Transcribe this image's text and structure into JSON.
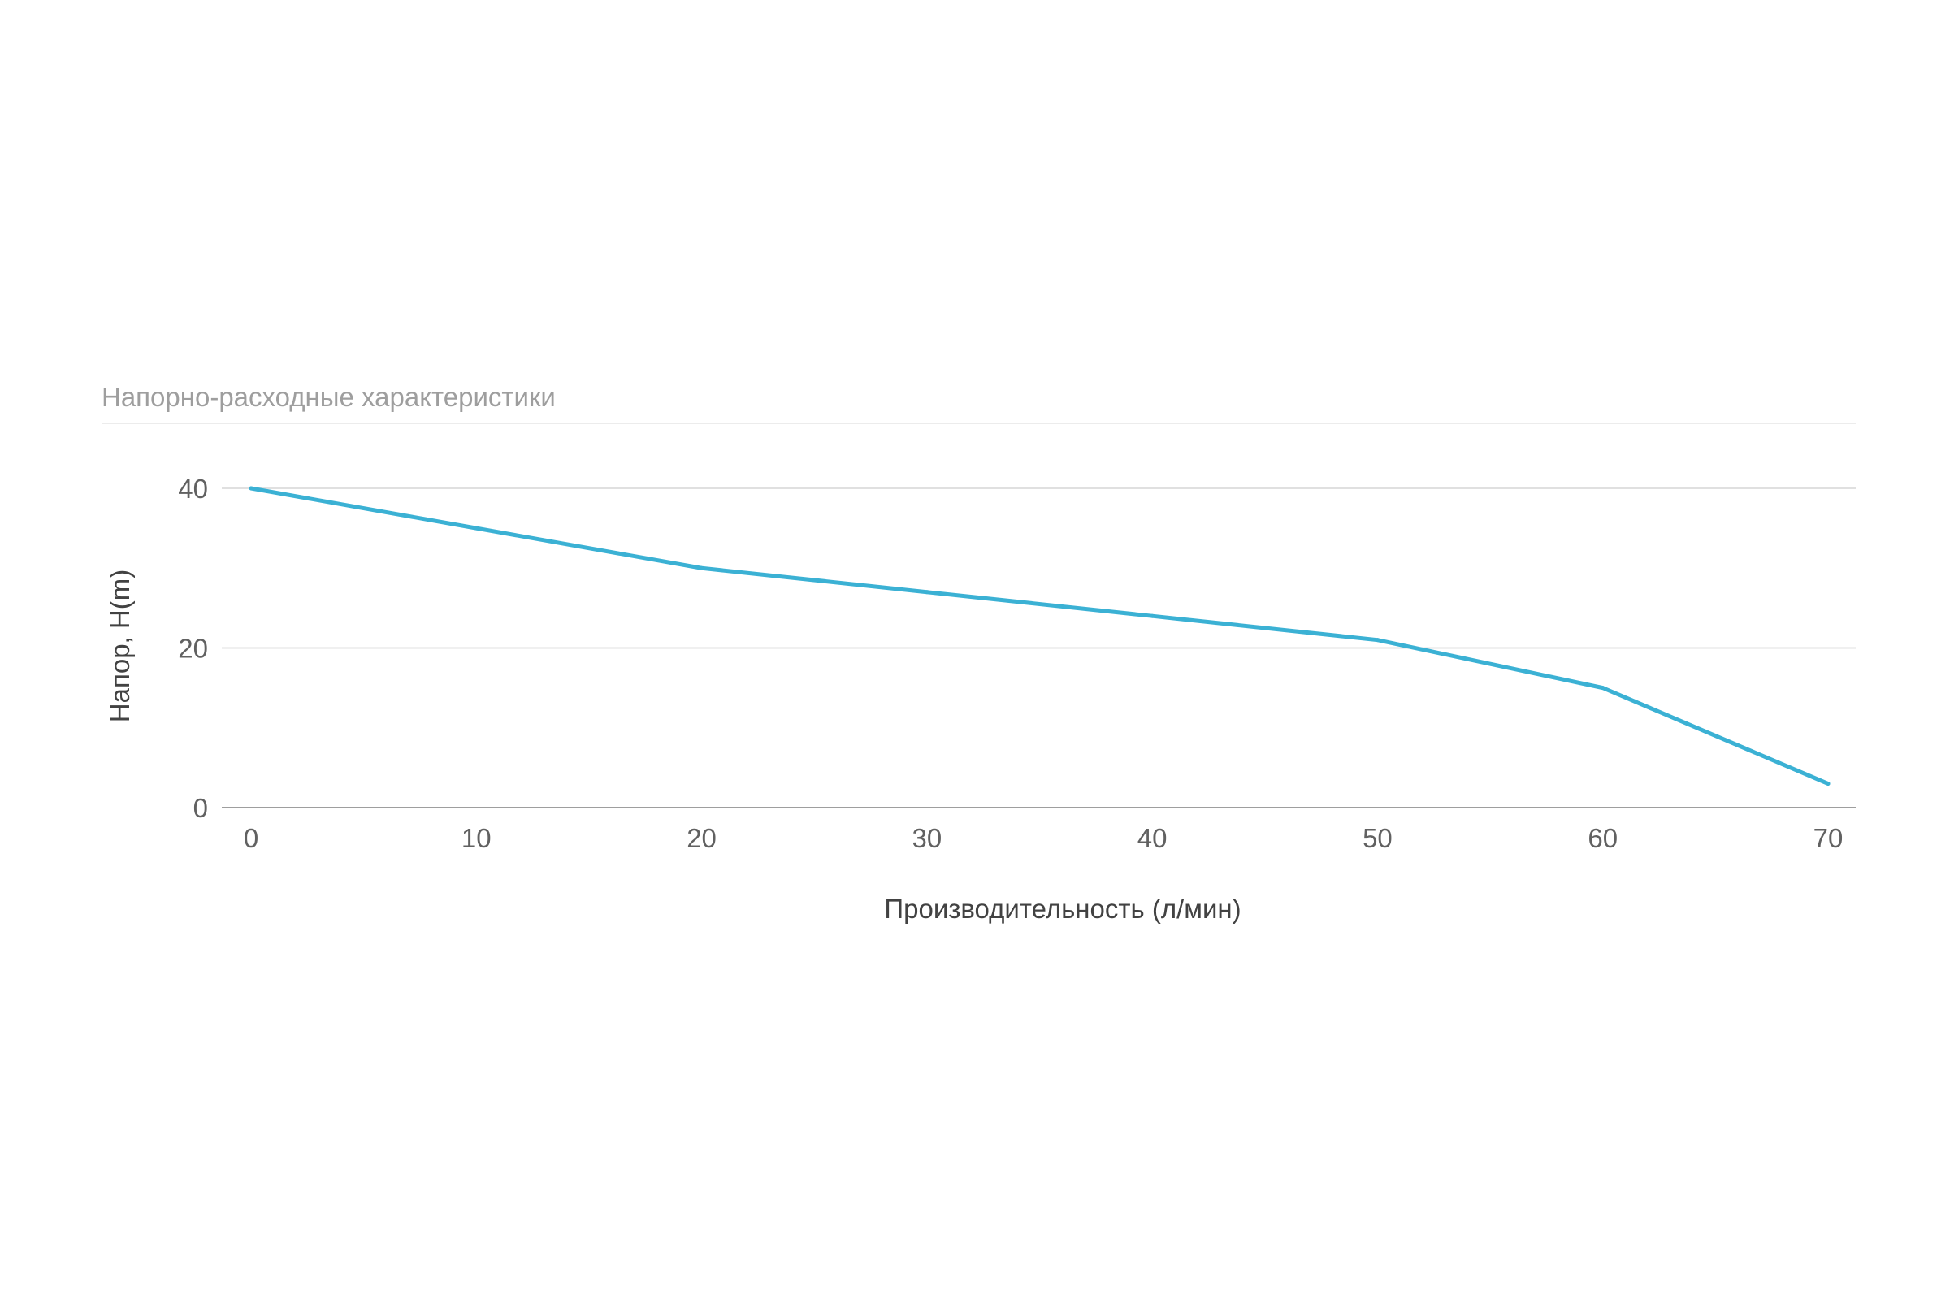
{
  "chart_data": {
    "type": "line",
    "title": "Напорно-расходные характеристики",
    "xlabel": "Производительность (л/мин)",
    "ylabel": "Напор, H(m)",
    "x": [
      0,
      10,
      20,
      30,
      40,
      50,
      60,
      70
    ],
    "xticks": [
      "0",
      "10",
      "20",
      "30",
      "40",
      "50",
      "60",
      "70"
    ],
    "xlim": [
      0,
      70
    ],
    "yticks": [
      "0",
      "20",
      "40"
    ],
    "ylim": [
      0,
      40
    ],
    "grid": true,
    "legend": "none",
    "series": [
      {
        "values": [
          40,
          35,
          30,
          27,
          24,
          21,
          15,
          3
        ],
        "color": "#3bb1d4"
      }
    ],
    "colors": {
      "title": "#9e9e9e",
      "grid": "#e0e0e0",
      "baseline": "#9e9e9e",
      "tick_text": "#616161",
      "axis_text": "#424242"
    }
  }
}
